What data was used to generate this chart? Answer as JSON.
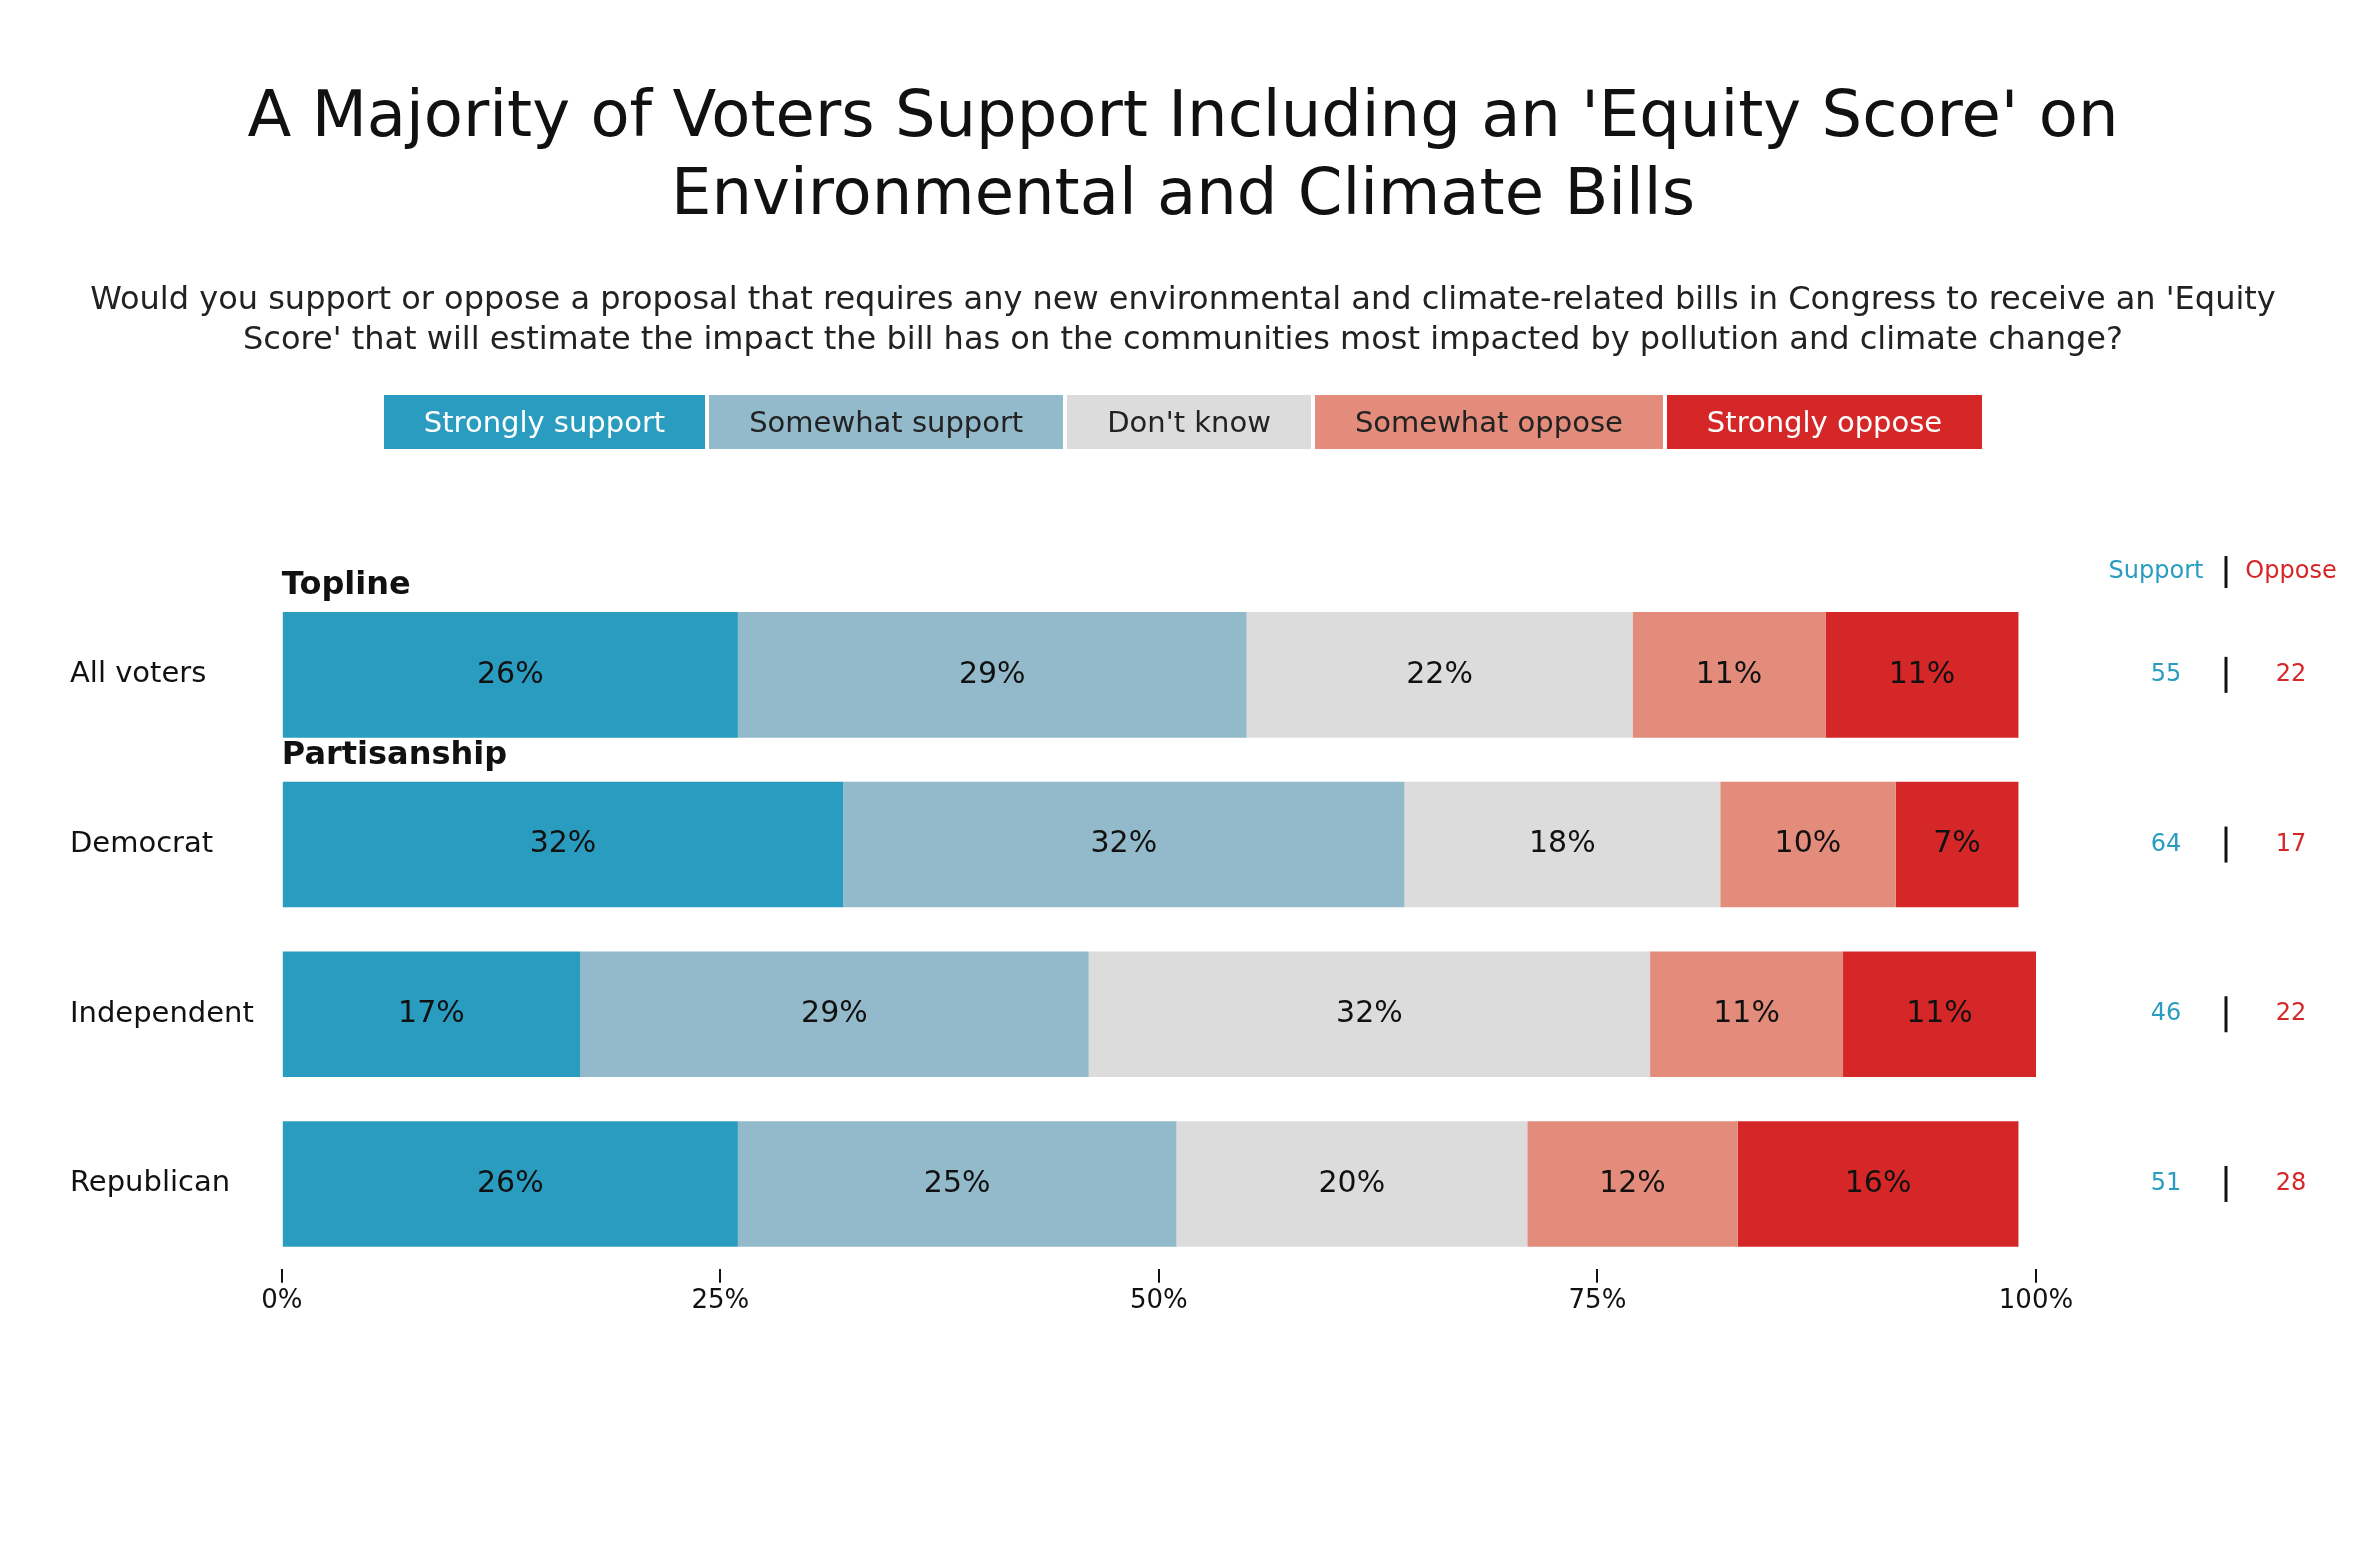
{
  "chart_data": {
    "type": "bar",
    "orientation": "horizontal",
    "stacked": true,
    "title": "A Majority of Voters Support Including an 'Equity Score' on Environmental and Climate Bills",
    "subtitle": "Would you support or oppose a proposal that requires any new environmental and climate-related bills in Congress to receive an 'Equity Score' that will estimate the impact the bill has on the communities most impacted by pollution and climate change?",
    "categories": [
      "All voters",
      "Democrat",
      "Independent",
      "Republican"
    ],
    "series": [
      {
        "name": "Strongly support",
        "color": "#299cc0",
        "values": [
          26,
          32,
          17,
          26
        ],
        "value_labels": [
          "26%",
          "32%",
          "17%",
          "26%"
        ]
      },
      {
        "name": "Somewhat support",
        "color": "#93bacb",
        "values": [
          29,
          32,
          29,
          25
        ],
        "value_labels": [
          "29%",
          "32%",
          "29%",
          "25%"
        ]
      },
      {
        "name": "Don't know",
        "color": "#dcdcdc",
        "values": [
          22,
          18,
          32,
          20
        ],
        "value_labels": [
          "22%",
          "18%",
          "32%",
          "20%"
        ]
      },
      {
        "name": "Somewhat oppose",
        "color": "#e48c7c",
        "values": [
          11,
          10,
          11,
          12
        ],
        "value_labels": [
          "11%",
          "10%",
          "11%",
          "12%"
        ]
      },
      {
        "name": "Strongly oppose",
        "color": "#d62728",
        "values": [
          11,
          7,
          11,
          16
        ],
        "value_labels": [
          "11%",
          "7%",
          "11%",
          "16%"
        ]
      }
    ],
    "xlim": [
      0,
      100
    ],
    "xticks": [
      {
        "value": 0,
        "label": "0%"
      },
      {
        "value": 25,
        "label": "25%"
      },
      {
        "value": 50,
        "label": "50%"
      },
      {
        "value": 75,
        "label": "75%"
      },
      {
        "value": 100,
        "label": "100%"
      }
    ],
    "legend": "top",
    "annotations": [
      "Topline",
      "Partisanship",
      "Support",
      "Oppose",
      "55",
      "22",
      "64",
      "17",
      "46",
      "22",
      "51",
      "28"
    ]
  }
}
